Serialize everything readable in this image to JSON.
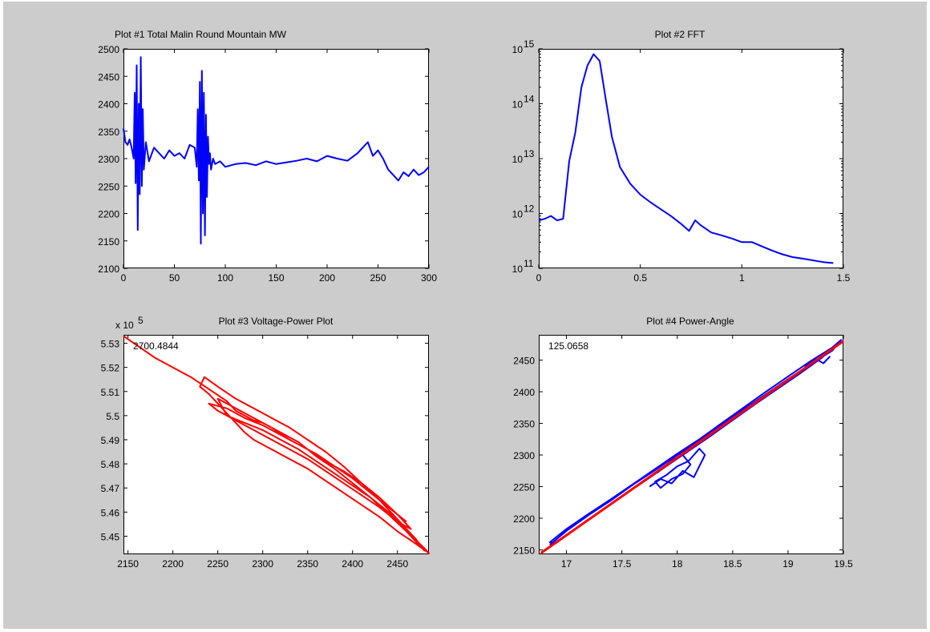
{
  "figure": {
    "background": "#cccccc"
  },
  "chart_data": [
    {
      "id": "plot1",
      "type": "line",
      "title": "Plot #1 Total Malin Round Mountain MW",
      "xlim": [
        0,
        300
      ],
      "ylim": [
        2100,
        2500
      ],
      "xticks": [
        0,
        50,
        100,
        150,
        200,
        250,
        300
      ],
      "yticks": [
        2100,
        2150,
        2200,
        2250,
        2300,
        2350,
        2400,
        2450,
        2500
      ],
      "series": [
        {
          "color": "#0000ff",
          "x": [
            0,
            2,
            4,
            6,
            8,
            10,
            11,
            12,
            13,
            14,
            15,
            16,
            17,
            18,
            19,
            20,
            22,
            25,
            30,
            35,
            40,
            45,
            50,
            55,
            60,
            65,
            70,
            72,
            73,
            74,
            75,
            76,
            77,
            78,
            79,
            80,
            81,
            82,
            83,
            84,
            85,
            86,
            88,
            90,
            95,
            100,
            110,
            120,
            130,
            140,
            150,
            160,
            170,
            180,
            190,
            200,
            210,
            220,
            230,
            235,
            240,
            245,
            250,
            255,
            260,
            265,
            270,
            275,
            280,
            285,
            290,
            295,
            300
          ],
          "y": [
            2355,
            2330,
            2325,
            2335,
            2320,
            2300,
            2420,
            2255,
            2470,
            2170,
            2400,
            2235,
            2485,
            2250,
            2390,
            2280,
            2330,
            2295,
            2320,
            2310,
            2300,
            2315,
            2305,
            2310,
            2300,
            2325,
            2320,
            2285,
            2390,
            2260,
            2440,
            2145,
            2460,
            2200,
            2420,
            2160,
            2380,
            2230,
            2340,
            2290,
            2310,
            2280,
            2300,
            2290,
            2295,
            2285,
            2290,
            2292,
            2288,
            2295,
            2290,
            2293,
            2296,
            2300,
            2295,
            2305,
            2300,
            2296,
            2310,
            2320,
            2330,
            2305,
            2315,
            2300,
            2280,
            2270,
            2260,
            2275,
            2268,
            2280,
            2270,
            2275,
            2285
          ]
        }
      ]
    },
    {
      "id": "plot2",
      "type": "line",
      "title": "Plot #2 FFT",
      "yscale": "log",
      "xlim": [
        0,
        1.5
      ],
      "ylim": [
        100000000000.0,
        1000000000000000.0
      ],
      "xticks": [
        "0",
        "0.5",
        "1",
        "1.5"
      ],
      "yticks": [
        11,
        12,
        13,
        14,
        15
      ],
      "series": [
        {
          "color": "#0000ff",
          "x": [
            0.0,
            0.03,
            0.06,
            0.09,
            0.12,
            0.15,
            0.18,
            0.21,
            0.24,
            0.27,
            0.3,
            0.33,
            0.36,
            0.4,
            0.45,
            0.5,
            0.55,
            0.6,
            0.65,
            0.7,
            0.74,
            0.77,
            0.8,
            0.85,
            0.9,
            0.95,
            1.0,
            1.05,
            1.1,
            1.15,
            1.2,
            1.25,
            1.3,
            1.35,
            1.4,
            1.45
          ],
          "y": [
            750000000000.0,
            800000000000.0,
            900000000000.0,
            750000000000.0,
            800000000000.0,
            9000000000000.0,
            30000000000000.0,
            200000000000000.0,
            500000000000000.0,
            800000000000000.0,
            600000000000000.0,
            120000000000000.0,
            25000000000000.0,
            7000000000000.0,
            3500000000000.0,
            2200000000000.0,
            1600000000000.0,
            1200000000000.0,
            900000000000.0,
            650000000000.0,
            480000000000.0,
            750000000000.0,
            600000000000.0,
            450000000000.0,
            400000000000.0,
            350000000000.0,
            300000000000.0,
            300000000000.0,
            250000000000.0,
            210000000000.0,
            180000000000.0,
            160000000000.0,
            150000000000.0,
            140000000000.0,
            130000000000.0,
            125000000000.0
          ]
        }
      ]
    },
    {
      "id": "plot3",
      "type": "line",
      "title": "Plot #3 Voltage-Power Plot",
      "xlim": [
        2145,
        2485
      ],
      "ylim": [
        5.4425,
        5.5335
      ],
      "xticks": [
        2150,
        2200,
        2250,
        2300,
        2350,
        2400,
        2450
      ],
      "yticks": [
        "5.45",
        "5.46",
        "5.47",
        "5.48",
        "5.49",
        "5.5",
        "5.51",
        "5.52",
        "5.53"
      ],
      "exponent_label": "x 10",
      "exponent": "5",
      "annotation": "2700.4844",
      "series": [
        {
          "color": "#ff0000",
          "x": [
            2145,
            2180,
            2220,
            2240,
            2260,
            2270,
            2280,
            2290,
            2300,
            2310,
            2320,
            2330,
            2340,
            2350,
            2360,
            2380,
            2400,
            2420,
            2440,
            2460,
            2480,
            2485,
            2470,
            2450,
            2430,
            2410,
            2390,
            2370,
            2350,
            2330,
            2310,
            2290,
            2280,
            2270,
            2260,
            2250,
            2240,
            2230,
            2235,
            2250,
            2270,
            2290,
            2310,
            2330,
            2350,
            2370,
            2390,
            2410,
            2430,
            2450,
            2470,
            2480,
            2460,
            2440,
            2420,
            2400,
            2380,
            2360,
            2340,
            2320,
            2300,
            2280,
            2260,
            2250,
            2270,
            2290,
            2310,
            2330,
            2350,
            2370,
            2390,
            2410,
            2430,
            2450,
            2465,
            2450,
            2430,
            2410,
            2390,
            2370,
            2350,
            2330,
            2310,
            2290,
            2270,
            2250,
            2240,
            2260,
            2280,
            2300,
            2320,
            2340,
            2360,
            2380,
            2400,
            2420,
            2440,
            2460
          ],
          "y": [
            5.533,
            5.524,
            5.516,
            5.511,
            5.506,
            5.502,
            5.5,
            5.498,
            5.497,
            5.495,
            5.493,
            5.491,
            5.489,
            5.486,
            5.483,
            5.478,
            5.472,
            5.466,
            5.46,
            5.452,
            5.445,
            5.443,
            5.447,
            5.452,
            5.458,
            5.463,
            5.468,
            5.473,
            5.478,
            5.482,
            5.486,
            5.49,
            5.493,
            5.497,
            5.501,
            5.505,
            5.509,
            5.512,
            5.516,
            5.512,
            5.507,
            5.503,
            5.499,
            5.495,
            5.49,
            5.485,
            5.479,
            5.472,
            5.465,
            5.457,
            5.449,
            5.444,
            5.452,
            5.459,
            5.466,
            5.471,
            5.476,
            5.481,
            5.486,
            5.49,
            5.494,
            5.497,
            5.5,
            5.507,
            5.503,
            5.499,
            5.495,
            5.49,
            5.486,
            5.481,
            5.477,
            5.472,
            5.466,
            5.459,
            5.453,
            5.456,
            5.462,
            5.467,
            5.472,
            5.477,
            5.482,
            5.486,
            5.49,
            5.494,
            5.498,
            5.502,
            5.505,
            5.503,
            5.499,
            5.496,
            5.492,
            5.488,
            5.484,
            5.479,
            5.474,
            5.468,
            5.462,
            5.456
          ]
        }
      ]
    },
    {
      "id": "plot4",
      "type": "line",
      "title": "Plot #4 Power-Angle",
      "xlim": [
        16.75,
        19.5
      ],
      "ylim": [
        2143,
        2490
      ],
      "xticks": [
        "17",
        "17.5",
        "18",
        "18.5",
        "19",
        "19.5"
      ],
      "yticks": [
        2150,
        2200,
        2250,
        2300,
        2350,
        2400,
        2450
      ],
      "annotation": "125.0658",
      "series": [
        {
          "color": "#0000ff",
          "x": [
            16.85,
            17.0,
            17.2,
            17.4,
            17.6,
            17.8,
            18.0,
            18.2,
            18.4,
            18.6,
            18.8,
            19.0,
            19.2,
            19.4,
            19.48,
            19.4,
            19.2,
            19.0,
            18.8,
            18.6,
            18.4,
            18.2,
            18.0,
            17.8,
            17.6,
            17.4,
            17.2,
            17.0,
            16.85,
            16.9,
            17.1,
            17.3,
            17.5,
            17.7,
            17.9,
            18.1,
            18.3,
            18.5,
            18.7,
            18.9,
            19.1,
            19.3,
            19.45
          ],
          "y": [
            2158,
            2180,
            2205,
            2228,
            2253,
            2276,
            2300,
            2322,
            2348,
            2372,
            2396,
            2420,
            2443,
            2465,
            2482,
            2470,
            2448,
            2424,
            2400,
            2375,
            2350,
            2325,
            2302,
            2278,
            2254,
            2230,
            2207,
            2183,
            2162,
            2160,
            2185,
            2210,
            2235,
            2258,
            2282,
            2306,
            2330,
            2355,
            2380,
            2404,
            2428,
            2453,
            2476
          ]
        },
        {
          "color": "#0000ff",
          "x": [
            17.75,
            17.85,
            17.95,
            18.05,
            18.15,
            18.25,
            18.2,
            18.1,
            18.0,
            17.9,
            17.8,
            17.85,
            17.95,
            18.05,
            18.12,
            18.05,
            17.95,
            17.88,
            17.82
          ],
          "y": [
            2250,
            2262,
            2255,
            2275,
            2265,
            2300,
            2310,
            2290,
            2282,
            2268,
            2258,
            2248,
            2262,
            2270,
            2285,
            2300,
            2292,
            2280,
            2272
          ]
        },
        {
          "color": "#0000ff",
          "x": [
            19.15,
            19.25,
            19.32,
            19.38
          ],
          "y": [
            2440,
            2452,
            2445,
            2456
          ]
        },
        {
          "color": "#ff0000",
          "x": [
            16.77,
            19.5
          ],
          "y": [
            2145,
            2480
          ]
        }
      ]
    }
  ]
}
